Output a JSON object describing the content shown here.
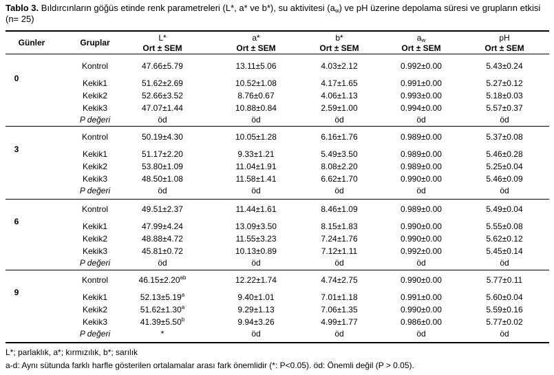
{
  "title": {
    "label": "Tablo 3.",
    "text_1": "Bıldırcınların göğüs etinde renk parametreleri (L*, a* ve b*), su aktivitesi (a",
    "text_sub": "w",
    "text_2": ") ve pH üzerine depolama süresi ve grupların etkisi (n= 25)"
  },
  "header": {
    "day": "Günler",
    "group": "Gruplar",
    "columns": [
      {
        "name": "L*",
        "stat": "Ort ± SEM"
      },
      {
        "name": "a*",
        "stat": "Ort ± SEM"
      },
      {
        "name": "b*",
        "stat": "Ort ± SEM"
      },
      {
        "name": "a",
        "name_sub": "w",
        "stat": "Ort ± SEM"
      },
      {
        "name": "pH",
        "stat": "Ort ± SEM"
      }
    ]
  },
  "days": [
    {
      "day": "0",
      "rows": [
        {
          "group": "Kontrol",
          "cells": [
            "47.66±5.79",
            "13.11±5.06",
            "4.03±2.12",
            "0.992±0.00",
            "5.43±0.24"
          ]
        },
        {
          "group": "Kekik1",
          "cells": [
            "51.62±2.69",
            "10.52±1.08",
            "4.17±1.65",
            "0.991±0.00",
            "5.27±0.12"
          ]
        },
        {
          "group": "Kekik2",
          "cells": [
            "52.66±3.52",
            "8.76±0.67",
            "4.06±1.13",
            "0.993±0.00",
            "5.18±0.03"
          ]
        },
        {
          "group": "Kekik3",
          "cells": [
            "47.07±1.44",
            "10.88±0.84",
            "2.59±1.00",
            "0.994±0.00",
            "5.57±0.37"
          ]
        },
        {
          "group": "P değeri",
          "cells": [
            "öd",
            "öd",
            "öd",
            "öd",
            "öd"
          ]
        }
      ]
    },
    {
      "day": "3",
      "rows": [
        {
          "group": "Kontrol",
          "cells": [
            "50.19±4.30",
            "10.05±1.28",
            "6.16±1.76",
            "0.989±0.00",
            "5.37±0.08"
          ]
        },
        {
          "group": "Kekik1",
          "cells": [
            "51.17±2.20",
            "9.33±1.21",
            "5.49±3.50",
            "0.989±0.00",
            "5.46±0.28"
          ]
        },
        {
          "group": "Kekik2",
          "cells": [
            "53.80±1.09",
            "11.04±1.91",
            "8.08±2.20",
            "0.989±0.00",
            "5.25±0.04"
          ]
        },
        {
          "group": "Kekik3",
          "cells": [
            "48.50±1.08",
            "11.58±1.41",
            "6.62±1.70",
            "0.990±0.00",
            "5.46±0.09"
          ]
        },
        {
          "group": "P değeri",
          "cells": [
            "öd",
            "öd",
            "öd",
            "öd",
            "öd"
          ]
        }
      ]
    },
    {
      "day": "6",
      "rows": [
        {
          "group": "Kontrol",
          "cells": [
            "49.51±2.37",
            "11.44±1.61",
            "8.46±1.09",
            "0.989±0.00",
            "5.49±0.04"
          ]
        },
        {
          "group": "Kekik1",
          "cells": [
            "47.99±4.24",
            "13.09±3.50",
            "8.15±1.83",
            "0.990±0.00",
            "5.55±0.08"
          ]
        },
        {
          "group": "Kekik2",
          "cells": [
            "48.88±4.72",
            "11.55±3.23",
            "7.24±1.76",
            "0.990±0.00",
            "5.62±0.12"
          ]
        },
        {
          "group": "Kekik3",
          "cells": [
            "45.81±0.72",
            "10.13±0.89",
            "7.12±1.11",
            "0.992±0.00",
            "5.45±0.14"
          ]
        },
        {
          "group": "P değeri",
          "cells": [
            "öd",
            "öd",
            "öd",
            "öd",
            "öd"
          ]
        }
      ]
    },
    {
      "day": "9",
      "rows": [
        {
          "group": "Kontrol",
          "cells": [
            {
              "value": "46.15±2.20",
              "sup": "ab"
            },
            "12.22±1.74",
            "4.74±2.75",
            "0.990±0.00",
            "5.77±0.11"
          ]
        },
        {
          "group": "Kekik1",
          "cells": [
            {
              "value": "52.13±5.19",
              "sup": "a"
            },
            "9.40±1.01",
            "7.01±1.18",
            "0.991±0.00",
            "5.60±0.04"
          ]
        },
        {
          "group": "Kekik2",
          "cells": [
            {
              "value": "51.62±1.30",
              "sup": "a"
            },
            "9.29±1.13",
            "7.06±1.35",
            "0.990±0.00",
            "5.59±0.16"
          ]
        },
        {
          "group": "Kekik3",
          "cells": [
            {
              "value": "41.39±5.50",
              "sup": "b"
            },
            "9.94±3.26",
            "4.99±1.77",
            "0.986±0.00",
            "5.77±0.02"
          ]
        },
        {
          "group": "P değeri",
          "cells": [
            "*",
            "öd",
            "öd",
            "öd",
            "öd"
          ]
        }
      ]
    }
  ],
  "footnotes": [
    "L*; parlaklık, a*; kırmızılık, b*; sarılık",
    "a-d: Aynı sütunda farklı harfle gösterilen ortalamalar arası fark önemlidir (*: P<0.05). öd: Önemli değil (P > 0.05)."
  ]
}
